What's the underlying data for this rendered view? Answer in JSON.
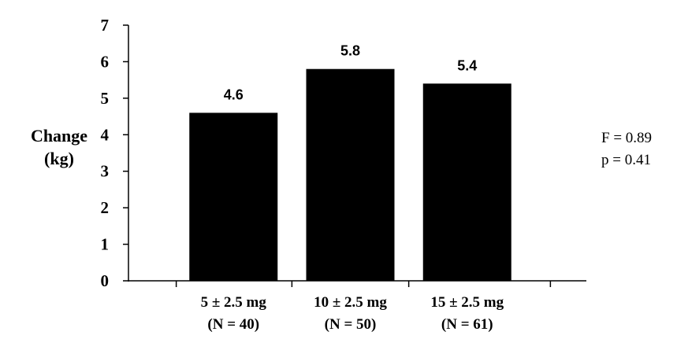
{
  "chart_data": {
    "type": "bar",
    "categories": [
      "5 ± 2.5 mg",
      "10 ± 2.5 mg",
      "15 ± 2.5 mg"
    ],
    "category_sublabels": [
      "(N = 40)",
      "(N = 50)",
      "(N = 61)"
    ],
    "values": [
      4.6,
      5.8,
      5.4
    ],
    "data_labels": [
      "4.6",
      "5.8",
      "5.4"
    ],
    "title": "",
    "xlabel": "",
    "ylabel_lines": [
      "Change",
      "(kg)"
    ],
    "ylim": [
      0,
      7
    ],
    "yticks": [
      0,
      1,
      2,
      3,
      4,
      5,
      6,
      7
    ],
    "grid": false,
    "bar_color": "#000000",
    "annotations": [
      "F = 0.89",
      "p = 0.41"
    ]
  }
}
